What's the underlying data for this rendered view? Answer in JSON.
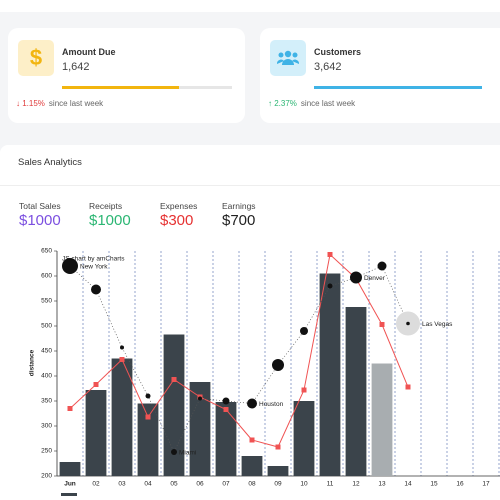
{
  "cards": [
    {
      "title": "Amount Due",
      "icon": "$",
      "value": "1,642",
      "progress": 69,
      "change": "1.15%",
      "note": "since last week"
    },
    {
      "title": "Customers",
      "value": "3,642",
      "progress": 100,
      "change": "2.37%",
      "note": "since last week"
    }
  ],
  "panel": {
    "title": "Sales Analytics",
    "stats": [
      {
        "label": "Total Sales",
        "value": "$1000"
      },
      {
        "label": "Receipts",
        "value": "$1000"
      },
      {
        "label": "Expenses",
        "value": "$300"
      },
      {
        "label": "Earnings",
        "value": "$700"
      }
    ]
  },
  "chart_data": {
    "type": "combo",
    "credit": "JS chart by amCharts",
    "y_label": "distance",
    "categories": [
      "Jun",
      "02",
      "03",
      "04",
      "05",
      "06",
      "07",
      "08",
      "09",
      "10",
      "11",
      "12",
      "13",
      "14",
      "15",
      "16",
      "17"
    ],
    "ylim": [
      200,
      650
    ],
    "yticks": [
      200,
      250,
      300,
      350,
      400,
      450,
      500,
      550,
      600,
      650
    ],
    "grid": false,
    "vgrid": true,
    "series": [
      {
        "type": "bar",
        "color": "#3b444b",
        "colors": [
          "#3b444b",
          "#3b444b",
          "#3b444b",
          "#3b444b",
          "#3b444b",
          "#3b444b",
          "#3b444b",
          "#3b444b",
          "#3b444b",
          "#3b444b",
          "#3b444b",
          "#3b444b",
          "#a8adb0",
          null,
          null,
          null,
          null
        ],
        "values": [
          228,
          372,
          435,
          345,
          483,
          388,
          348,
          240,
          220,
          350,
          605,
          538,
          425,
          null,
          null,
          null,
          null
        ]
      },
      {
        "type": "line",
        "color": "#f05353",
        "values": [
          335,
          383,
          433,
          318,
          393,
          358,
          333,
          272,
          258,
          372,
          643,
          595,
          503,
          378,
          null,
          null,
          null
        ]
      },
      {
        "type": "bubble",
        "color": "#111111",
        "colors": [
          "#111111",
          "#111111",
          "#111111",
          "#111111",
          "#111111",
          "#111111",
          "#111111",
          "#111111",
          "#111111",
          "#111111",
          "#111111",
          "#111111",
          "#111111",
          "#dcdcdc",
          null,
          null,
          null
        ],
        "values": [
          620,
          573,
          457,
          360,
          248,
          355,
          350,
          345,
          422,
          490,
          580,
          597,
          620,
          505,
          null,
          null,
          null
        ],
        "sizes": [
          8,
          5,
          2,
          2.5,
          3,
          2,
          3.5,
          5,
          6,
          4,
          2.5,
          6,
          4.5,
          12,
          null,
          null,
          null
        ],
        "labels": [
          "New York",
          null,
          null,
          null,
          "Miami",
          null,
          null,
          "Houston",
          null,
          null,
          null,
          "Denver",
          null,
          "Las Vegas",
          null,
          null,
          null
        ]
      }
    ]
  }
}
